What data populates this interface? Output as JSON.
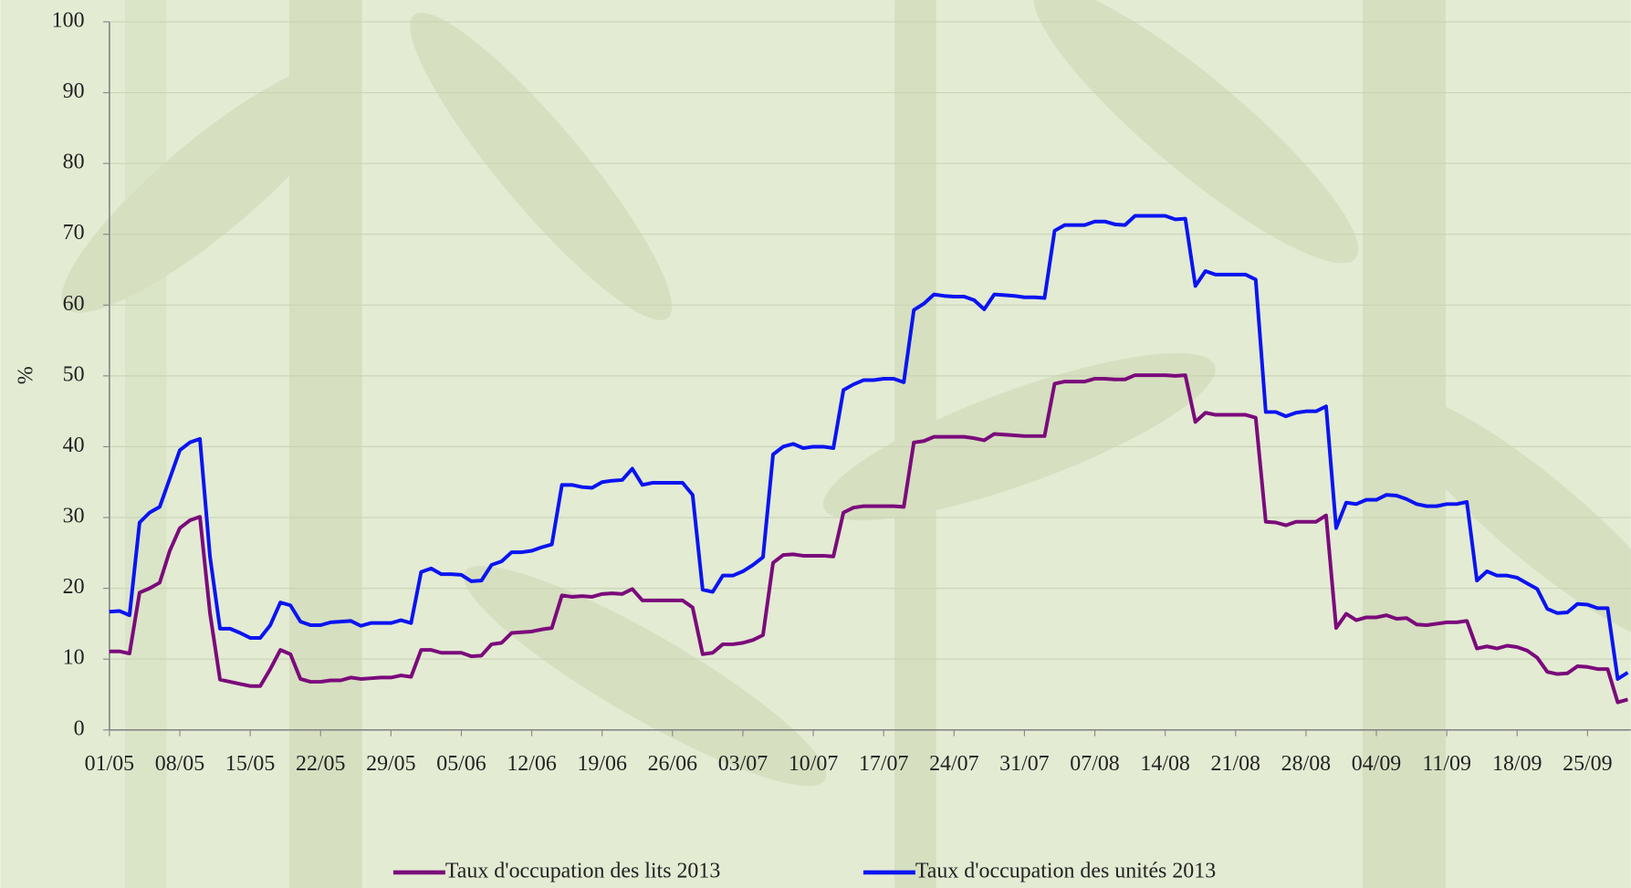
{
  "chart_data": {
    "type": "line",
    "y_label": "%",
    "categories": [
      "01/05",
      null,
      null,
      null,
      null,
      null,
      null,
      "08/05",
      null,
      null,
      null,
      null,
      null,
      null,
      "15/05",
      null,
      null,
      null,
      null,
      null,
      null,
      "22/05",
      null,
      null,
      null,
      null,
      null,
      null,
      "29/05",
      null,
      null,
      null,
      null,
      null,
      null,
      "05/06",
      null,
      null,
      null,
      null,
      null,
      null,
      "12/06",
      null,
      null,
      null,
      null,
      null,
      null,
      "19/06",
      null,
      null,
      null,
      null,
      null,
      null,
      "26/06",
      null,
      null,
      null,
      null,
      null,
      null,
      "03/07",
      null,
      null,
      null,
      null,
      null,
      null,
      "10/07",
      null,
      null,
      null,
      null,
      null,
      null,
      "17/07",
      null,
      null,
      null,
      null,
      null,
      null,
      "24/07",
      null,
      null,
      null,
      null,
      null,
      null,
      "31/07",
      null,
      null,
      null,
      null,
      null,
      null,
      "07/08",
      null,
      null,
      null,
      null,
      null,
      null,
      "14/08",
      null,
      null,
      null,
      null,
      null,
      null,
      "21/08",
      null,
      null,
      null,
      null,
      null,
      null,
      "28/08",
      null,
      null,
      null,
      null,
      null,
      null,
      "04/09",
      null,
      null,
      null,
      null,
      null,
      null,
      "11/09",
      null,
      null,
      null,
      null,
      null,
      null,
      "18/09",
      null,
      null,
      null,
      null,
      null,
      null,
      "25/09",
      null,
      null,
      null,
      null
    ],
    "series": [
      {
        "name": "Taux d'occupation des lits 2013",
        "color": "#7b0a7b",
        "values": [
          11.1,
          11.1,
          10.8,
          19.4,
          20.0,
          20.8,
          25.3,
          28.5,
          29.6,
          30.1,
          16.5,
          7.1,
          6.8,
          6.5,
          6.2,
          6.2,
          8.6,
          11.3,
          10.7,
          7.2,
          6.8,
          6.8,
          7.0,
          7.0,
          7.4,
          7.2,
          7.3,
          7.4,
          7.4,
          7.7,
          7.5,
          11.3,
          11.3,
          10.9,
          10.9,
          10.9,
          10.4,
          10.5,
          12.1,
          12.3,
          13.7,
          13.8,
          13.9,
          14.2,
          14.4,
          19.0,
          18.8,
          18.9,
          18.8,
          19.2,
          19.3,
          19.2,
          19.9,
          18.3,
          18.3,
          18.3,
          18.3,
          18.3,
          17.3,
          10.7,
          10.9,
          12.1,
          12.1,
          12.3,
          12.7,
          13.4,
          23.6,
          24.7,
          24.8,
          24.6,
          24.6,
          24.6,
          24.5,
          30.7,
          31.4,
          31.6,
          31.6,
          31.6,
          31.6,
          31.5,
          40.6,
          40.8,
          41.4,
          41.4,
          41.4,
          41.4,
          41.2,
          40.9,
          41.8,
          41.7,
          41.6,
          41.5,
          41.5,
          41.5,
          48.9,
          49.2,
          49.2,
          49.2,
          49.6,
          49.6,
          49.5,
          49.5,
          50.1,
          50.1,
          50.1,
          50.1,
          50.0,
          50.1,
          43.5,
          44.8,
          44.5,
          44.5,
          44.5,
          44.5,
          44.1,
          29.4,
          29.3,
          28.9,
          29.4,
          29.4,
          29.4,
          30.3,
          14.4,
          16.4,
          15.5,
          15.9,
          15.9,
          16.2,
          15.7,
          15.8,
          14.9,
          14.8,
          15.0,
          15.2,
          15.2,
          15.4,
          11.5,
          11.8,
          11.5,
          11.9,
          11.7,
          11.2,
          10.2,
          8.2,
          7.9,
          8.0,
          9.0,
          8.9,
          8.6,
          8.6,
          3.9,
          4.3
        ]
      },
      {
        "name": "Taux d'occupation des unités 2013",
        "color": "#0a14f0",
        "values": [
          16.7,
          16.8,
          16.2,
          29.3,
          30.7,
          31.5,
          35.5,
          39.5,
          40.6,
          41.1,
          24.5,
          14.3,
          14.3,
          13.7,
          13.0,
          13.0,
          14.8,
          18.0,
          17.6,
          15.3,
          14.8,
          14.8,
          15.2,
          15.3,
          15.4,
          14.7,
          15.1,
          15.1,
          15.1,
          15.5,
          15.1,
          22.3,
          22.8,
          22.0,
          22.0,
          21.9,
          21.0,
          21.1,
          23.3,
          23.8,
          25.1,
          25.1,
          25.3,
          25.8,
          26.2,
          34.6,
          34.6,
          34.3,
          34.2,
          35.0,
          35.2,
          35.3,
          36.9,
          34.6,
          34.9,
          34.9,
          34.9,
          34.9,
          33.2,
          19.8,
          19.5,
          21.8,
          21.8,
          22.4,
          23.3,
          24.4,
          38.9,
          40.0,
          40.4,
          39.8,
          40.0,
          40.0,
          39.8,
          48.0,
          48.8,
          49.4,
          49.4,
          49.6,
          49.6,
          49.1,
          59.3,
          60.2,
          61.5,
          61.3,
          61.2,
          61.2,
          60.7,
          59.4,
          61.5,
          61.4,
          61.3,
          61.1,
          61.1,
          61.0,
          70.5,
          71.3,
          71.3,
          71.3,
          71.8,
          71.8,
          71.4,
          71.3,
          72.6,
          72.6,
          72.6,
          72.6,
          72.1,
          72.2,
          62.7,
          64.8,
          64.3,
          64.3,
          64.3,
          64.3,
          63.6,
          44.9,
          44.9,
          44.3,
          44.8,
          45.0,
          45.0,
          45.7,
          28.5,
          32.1,
          31.9,
          32.5,
          32.5,
          33.2,
          33.1,
          32.6,
          31.9,
          31.6,
          31.6,
          31.9,
          31.9,
          32.2,
          21.1,
          22.4,
          21.8,
          21.8,
          21.5,
          20.7,
          19.9,
          17.1,
          16.5,
          16.6,
          17.8,
          17.7,
          17.2,
          17.2,
          7.2,
          8.1
        ]
      }
    ],
    "ylim": [
      0,
      100
    ],
    "yticks": [
      0,
      10,
      20,
      30,
      40,
      50,
      60,
      70,
      80,
      90,
      100
    ],
    "grid": true
  }
}
